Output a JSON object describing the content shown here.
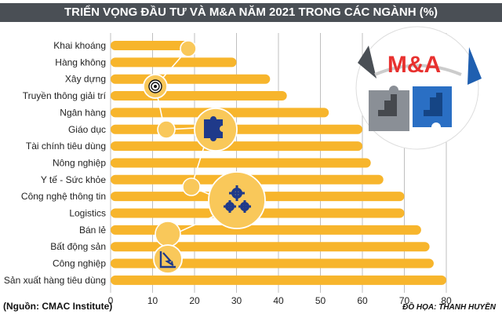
{
  "header": {
    "title": "TRIỂN VỌNG ĐẦU TƯ VÀ M&A NĂM 2021 TRONG CÁC NGÀNH (%)"
  },
  "footer": {
    "source": "(Nguồn: CMAC Institute)",
    "credit": "ĐỒ HỌA: THANH HUYỀN"
  },
  "logo": {
    "text": "M&A",
    "color": "#e8312f"
  },
  "colors": {
    "bar": "#f7b52c",
    "grid": "#bfbfbf",
    "title_bg": "#4a4f55",
    "icon": "#1f3a8a"
  },
  "icons": [
    "target-icon",
    "puzzle-icon",
    "gears-icon",
    "chart-arrow-icon",
    "ma-puzzle-logo"
  ],
  "chart_data": {
    "type": "bar",
    "orientation": "horizontal",
    "title": "TRIỂN VỌNG ĐẦU TƯ VÀ M&A NĂM 2021 TRONG CÁC NGÀNH (%)",
    "xlabel": "",
    "ylabel": "",
    "xlim": [
      0,
      80
    ],
    "xticks": [
      0,
      10,
      20,
      30,
      40,
      50,
      60,
      70,
      80
    ],
    "grid": true,
    "categories": [
      "Khai khoáng",
      "Hàng không",
      "Xây dựng",
      "Truyền thông giải trí",
      "Ngân hàng",
      "Giáo dục",
      "Tài chính tiêu dùng",
      "Nông nghiệp",
      "Y tế - Sức khỏe",
      "Công nghệ thông tin",
      "Logistics",
      "Bán lẻ",
      "Bất động sản",
      "Công nghiệp",
      "Sản xuất hàng tiêu dùng"
    ],
    "values": [
      20,
      30,
      38,
      42,
      52,
      60,
      60,
      62,
      65,
      70,
      70,
      74,
      76,
      77,
      80
    ]
  }
}
